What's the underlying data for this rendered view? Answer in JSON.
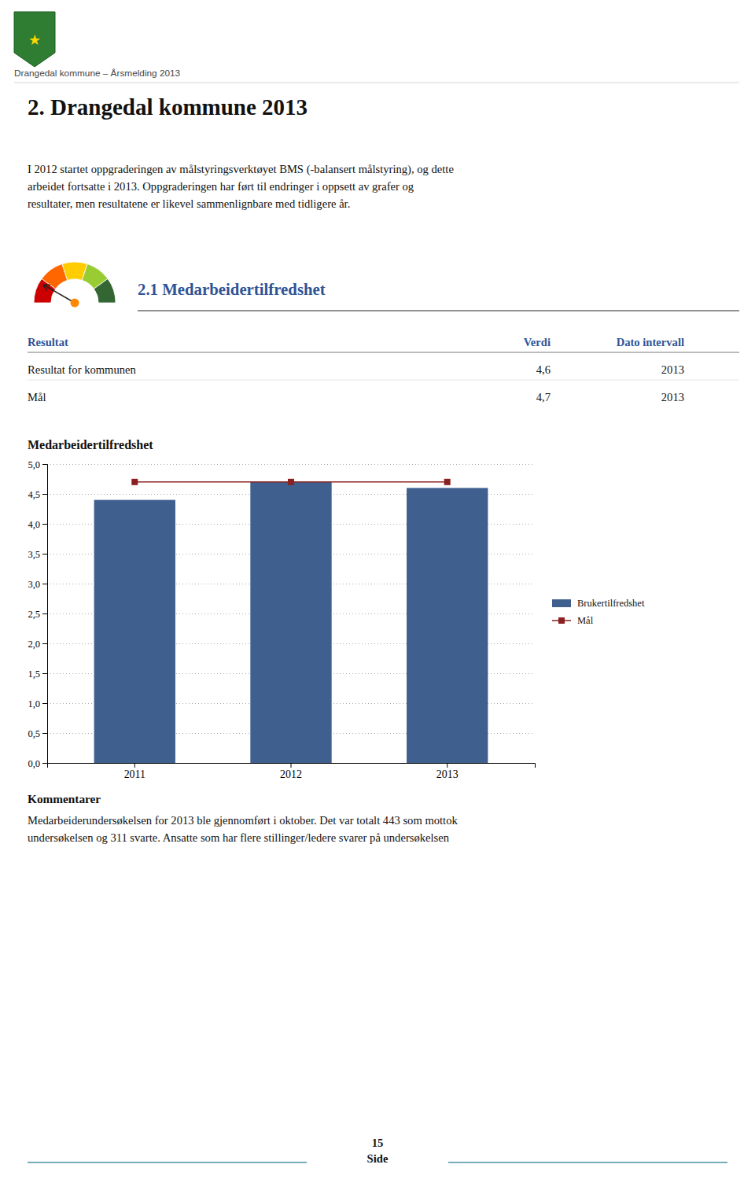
{
  "header_text": "Drangedal kommune – Årsmelding 2013",
  "emblem": "★",
  "page_title": "2. Drangedal kommune 2013",
  "intro": [
    "I 2012 startet oppgraderingen av målstyringsverktøyet BMS (-balansert målstyring), og dette",
    "arbeidet fortsatte i 2013. Oppgraderingen har ført til endringer i oppsett av grafer og",
    "resultater, men resultatene er likevel sammenlignbare med tidligere år."
  ],
  "section_title": "2.1 Medarbeidertilfredshet",
  "table": {
    "headers": [
      "Resultat",
      "Verdi",
      "Dato intervall"
    ],
    "rows": [
      [
        "Resultat for kommunen",
        "4,6",
        "2013"
      ],
      [
        "Mål",
        "4,7",
        "2013"
      ]
    ]
  },
  "chart_data": {
    "type": "bar",
    "title": "Medarbeidertilfredshet",
    "categories": [
      "2011",
      "2012",
      "2013"
    ],
    "series": [
      {
        "name": "Brukertilfredshet",
        "type": "bar",
        "color": "#3F5F8F",
        "values": [
          4.4,
          4.7,
          4.6
        ]
      },
      {
        "name": "Mål",
        "type": "line",
        "color": "#8B2020",
        "marker": "square",
        "values": [
          4.7,
          4.7,
          4.7
        ]
      }
    ],
    "ylim": [
      0.0,
      5.0
    ],
    "yticks": [
      {
        "value": 0.0,
        "label": "0,0"
      },
      {
        "value": 0.5,
        "label": "0,5"
      },
      {
        "value": 1.0,
        "label": "1,0"
      },
      {
        "value": 1.5,
        "label": "1,5"
      },
      {
        "value": 2.0,
        "label": "2,0"
      },
      {
        "value": 2.5,
        "label": "2,5"
      },
      {
        "value": 3.0,
        "label": "3,0"
      },
      {
        "value": 3.5,
        "label": "3,5"
      },
      {
        "value": 4.0,
        "label": "4,0"
      },
      {
        "value": 4.5,
        "label": "4,5"
      },
      {
        "value": 5.0,
        "label": "5,0"
      }
    ],
    "grid": true,
    "legend": "right"
  },
  "comments_title": "Kommentarer",
  "comments": [
    "Medarbeiderundersøkelsen for 2013 ble gjennomført i oktober. Det var totalt 443 som mottok",
    "undersøkelsen og 311 svarte. Ansatte som har flere stillinger/ledere svarer på undersøkelsen"
  ],
  "footer": {
    "label": "Side",
    "page": "15"
  }
}
